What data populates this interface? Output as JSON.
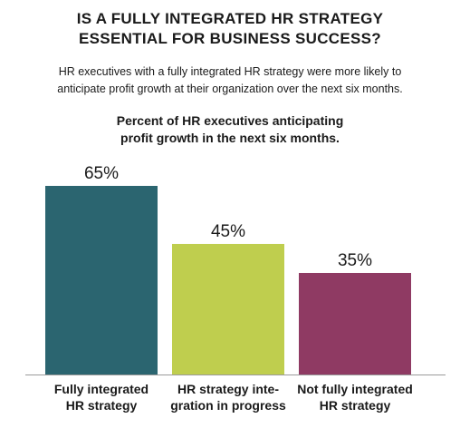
{
  "header": {
    "title_lines": [
      "IS A FULLY INTEGRATED HR STRATEGY",
      "ESSENTIAL FOR BUSINESS SUCCESS?"
    ],
    "subtitle_lines": [
      "HR executives with a fully integrated HR strategy were more likely to",
      "anticipate profit growth at their organization over the next six months."
    ],
    "chart_heading_lines": [
      "Percent of HR executives anticipating",
      "profit growth in the next six months."
    ]
  },
  "chart_data": {
    "type": "bar",
    "title": "Percent of HR executives anticipating profit growth in the next six months.",
    "categories": [
      [
        "Fully integrated",
        "HR strategy"
      ],
      [
        "HR strategy inte-",
        "gration in progress"
      ],
      [
        "Not fully integrated",
        "HR strategy"
      ]
    ],
    "values": [
      65,
      45,
      35
    ],
    "value_labels": [
      "65%",
      "45%",
      "35%"
    ],
    "colors": [
      "#2b6570",
      "#bfce4e",
      "#8f3a63"
    ],
    "ylim": [
      0,
      100
    ],
    "grid": false,
    "legend": "none"
  },
  "colors": {
    "axis": "#9a9a9a"
  }
}
